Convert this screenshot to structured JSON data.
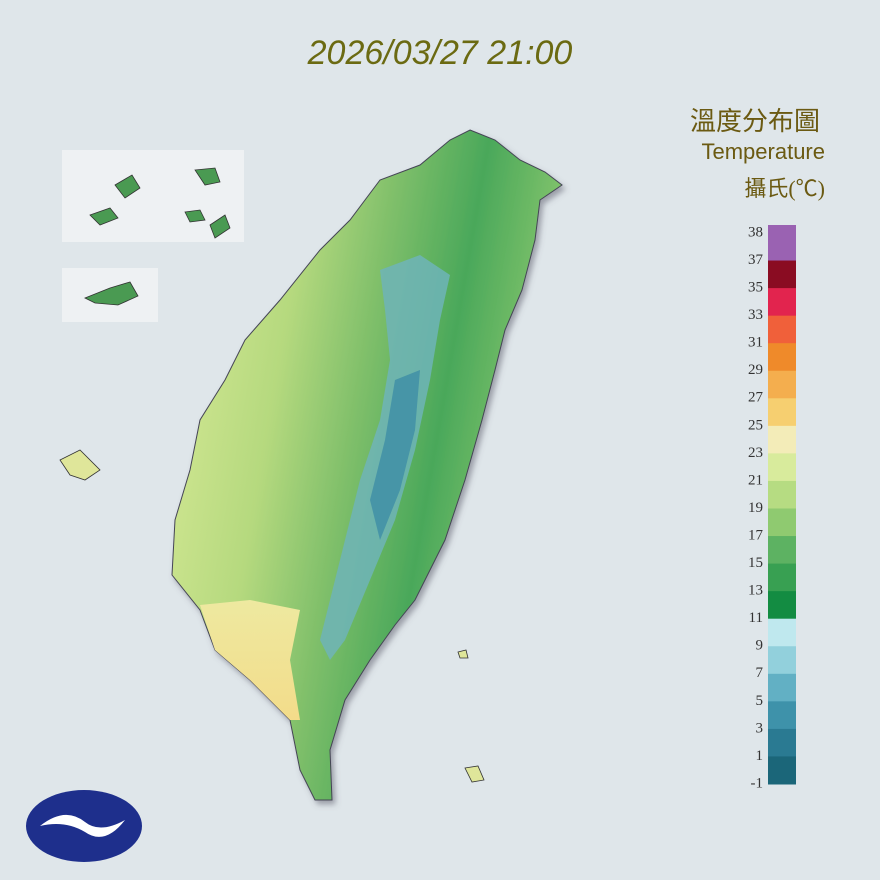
{
  "header": {
    "timestamp": "2026/03/27 21:00"
  },
  "legend": {
    "title": "溫度分布圖",
    "subtitle": "Temperature",
    "unit": "攝氏(℃)",
    "ticks": [
      38,
      37,
      35,
      33,
      31,
      29,
      27,
      25,
      23,
      21,
      19,
      17,
      15,
      13,
      11,
      9,
      7,
      5,
      3,
      1,
      -1
    ],
    "colors": [
      "#9a62b2",
      "#8a0c22",
      "#e2244e",
      "#f0603a",
      "#ef8a2a",
      "#f4ae4e",
      "#f6cf70",
      "#f3ecb8",
      "#d8eb9c",
      "#b6dc82",
      "#8fca70",
      "#5db262",
      "#38a052",
      "#138c42",
      "#bfe8ee",
      "#92d0dc",
      "#62b0c4",
      "#3e92aa",
      "#2a7a92",
      "#1b6679"
    ]
  }
}
